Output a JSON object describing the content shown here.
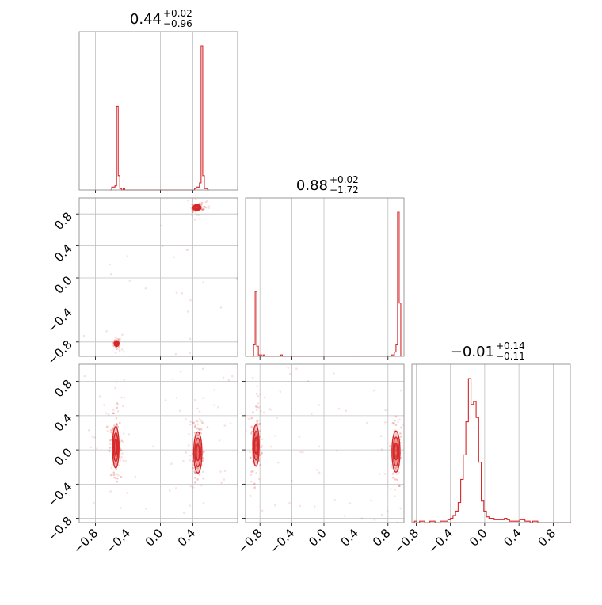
{
  "chart_data": {
    "type": "corner",
    "color": "#d62728",
    "grid_color": "#bfbfbf",
    "frame_color": "#808080",
    "parameters": [
      {
        "median": "0.44",
        "plus": "+0.02",
        "minus": "−0.96"
      },
      {
        "median": "0.88",
        "plus": "+0.02",
        "minus": "−1.72"
      },
      {
        "median": "−0.01",
        "plus": "+0.14",
        "minus": "−0.11"
      }
    ],
    "axis_ranges": {
      "p0": [
        -1.0,
        0.95
      ],
      "p1": [
        -0.98,
        1.0
      ],
      "p2": [
        -0.85,
        1.0
      ]
    },
    "ticks": {
      "values": [
        -0.8,
        -0.4,
        0.0,
        0.4,
        0.8
      ],
      "labels": [
        "−0.8",
        "−0.4",
        "0.0",
        "0.4",
        "0.8"
      ],
      "p0_values": [
        -0.8,
        -0.4,
        0.0,
        0.4
      ],
      "p0_labels": [
        "−0.8",
        "−0.4",
        "0.0",
        "0.4"
      ]
    },
    "histograms": {
      "p0": {
        "bin_start": -0.62,
        "bin_width": 0.02,
        "counts": [
          0,
          2,
          2,
          3,
          58,
          10,
          1,
          0,
          1,
          0,
          0,
          0,
          0,
          0,
          0,
          0,
          0,
          0,
          0,
          0,
          0,
          0,
          0,
          0,
          0,
          0,
          0,
          0,
          0,
          0,
          0,
          0,
          0,
          0,
          0,
          0,
          0,
          0,
          0,
          0,
          0,
          0,
          0,
          0,
          0,
          0,
          0,
          0,
          0,
          0,
          0,
          0,
          1,
          2,
          2,
          5,
          100,
          10,
          1,
          1,
          0
        ]
      },
      "p1": {
        "bin_start": -0.9,
        "bin_width": 0.02,
        "counts": [
          0,
          8,
          45,
          7,
          1,
          1,
          0,
          1,
          0,
          0,
          0,
          0,
          0,
          0,
          0,
          0,
          0,
          0,
          1,
          0,
          0,
          0,
          0,
          0,
          0,
          0,
          0,
          0,
          0,
          0,
          0,
          0,
          0,
          0,
          0,
          0,
          0,
          0,
          0,
          0,
          0,
          0,
          0,
          0,
          0,
          0,
          0,
          0,
          0,
          0,
          0,
          0,
          0,
          0,
          0,
          0,
          0,
          0,
          0,
          0,
          0,
          0,
          0,
          0,
          0,
          0,
          0,
          0,
          0,
          0,
          0,
          0,
          0,
          0,
          0,
          0,
          0,
          0,
          0,
          0,
          0,
          0,
          0,
          0,
          0,
          0,
          0,
          1,
          1,
          3,
          8,
          100,
          37
        ]
      },
      "p2": {
        "bin_start": -0.85,
        "bin_width": 0.03,
        "counts": [
          0,
          1,
          0,
          1,
          1,
          0,
          0,
          1,
          1,
          0,
          0,
          1,
          1,
          1,
          2,
          3,
          5,
          8,
          14,
          30,
          47,
          70,
          100,
          82,
          84,
          73,
          42,
          15,
          8,
          4,
          3,
          3,
          2,
          2,
          2,
          2,
          3,
          2,
          1,
          1,
          1,
          1,
          2,
          2,
          1,
          1,
          0,
          1,
          1,
          0,
          0,
          0,
          0,
          0,
          0,
          0,
          0,
          0,
          0,
          0,
          0,
          0
        ]
      }
    },
    "clusters": {
      "p1_vs_p0": [
        {
          "x": 0.45,
          "y": 0.88,
          "sx": 0.025,
          "sy": 0.018,
          "n": 45
        },
        {
          "x": -0.54,
          "y": -0.82,
          "sx": 0.015,
          "sy": 0.018,
          "n": 25
        }
      ],
      "p2_vs_p0": [
        {
          "x": -0.55,
          "y": 0.03,
          "sx": 0.02,
          "sy": 0.12,
          "n": 60
        },
        {
          "x": 0.46,
          "y": -0.03,
          "sx": 0.025,
          "sy": 0.12,
          "n": 60
        }
      ],
      "p2_vs_p1": [
        {
          "x": -0.85,
          "y": 0.05,
          "sx": 0.02,
          "sy": 0.12,
          "n": 60
        },
        {
          "x": 0.9,
          "y": -0.02,
          "sx": 0.025,
          "sy": 0.12,
          "n": 60
        }
      ]
    },
    "scatter_background": {
      "p1_vs_p0": {
        "n": 55
      },
      "p2_vs_p0": {
        "n": 110
      },
      "p2_vs_p1": {
        "n": 110
      }
    }
  }
}
